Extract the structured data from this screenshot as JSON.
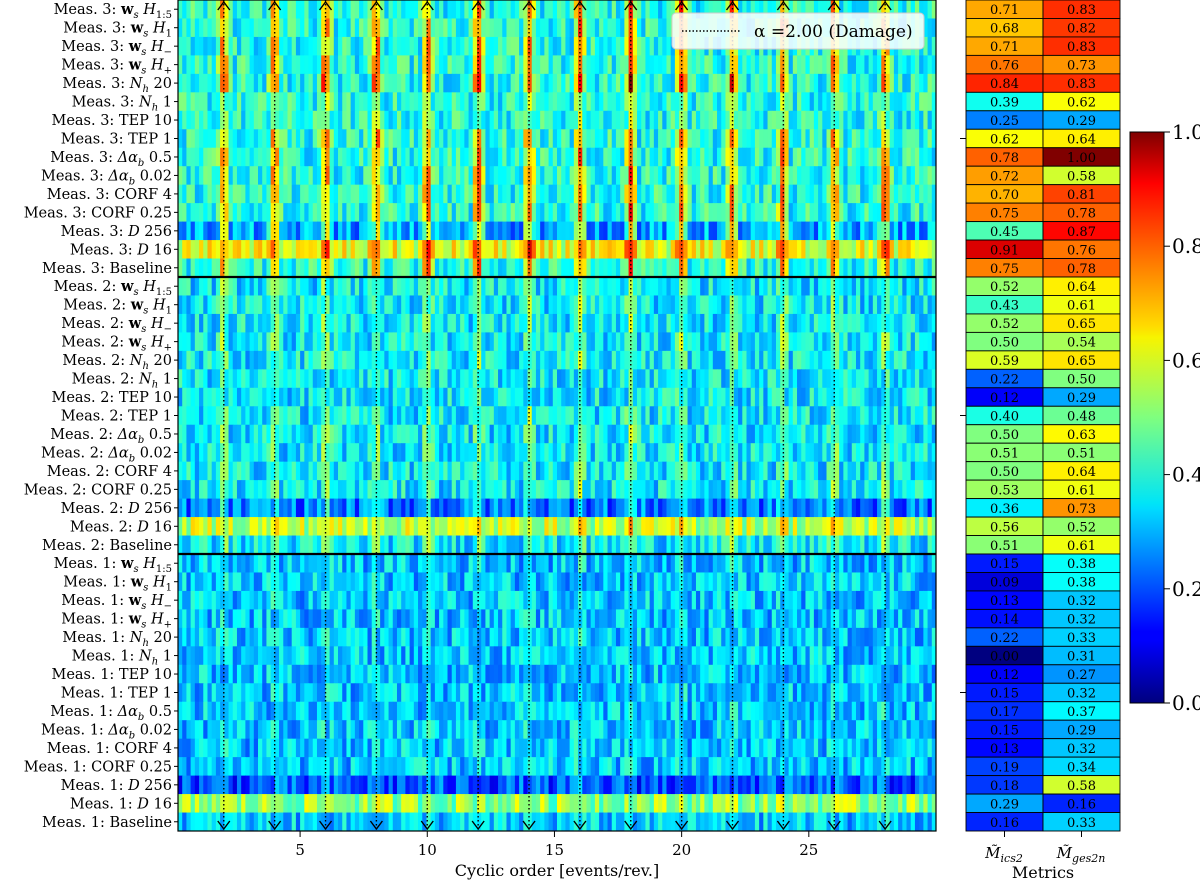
{
  "chart_data": {
    "type": "heatmap",
    "xlabel": "Cyclic order [events/rev.]",
    "x_range": [
      0.2,
      30
    ],
    "x_ticks": [
      5,
      10,
      15,
      20,
      25
    ],
    "fault_marker": {
      "legend_label": "α =2.00 (Damage)",
      "harmonics": [
        2,
        4,
        6,
        8,
        10,
        12,
        14,
        16,
        18,
        20,
        22,
        24,
        26,
        28
      ]
    },
    "rows": [
      "Meas. 3: w_s H_1:5",
      "Meas. 3: w_s H_1",
      "Meas. 3: w_s H_−",
      "Meas. 3: w_s H_+",
      "Meas. 3: N_h 20",
      "Meas. 3: N_h 1",
      "Meas. 3: TEP 10",
      "Meas. 3: TEP 1",
      "Meas. 3: Δα_b 0.5",
      "Meas. 3: Δα_b 0.02",
      "Meas. 3: CORF 4",
      "Meas. 3: CORF 0.25",
      "Meas. 3: D 256",
      "Meas. 3: D 16",
      "Meas. 3: Baseline",
      "Meas. 2: w_s H_1:5",
      "Meas. 2: w_s H_1",
      "Meas. 2: w_s H_−",
      "Meas. 2: w_s H_+",
      "Meas. 2: N_h 20",
      "Meas. 2: N_h 1",
      "Meas. 2: TEP 10",
      "Meas. 2: TEP 1",
      "Meas. 2: Δα_b 0.5",
      "Meas. 2: Δα_b 0.02",
      "Meas. 2: CORF 4",
      "Meas. 2: CORF 0.25",
      "Meas. 2: D 256",
      "Meas. 2: D 16",
      "Meas. 2: Baseline",
      "Meas. 1: w_s H_1:5",
      "Meas. 1: w_s H_1",
      "Meas. 1: w_s H_−",
      "Meas. 1: w_s H_+",
      "Meas. 1: N_h 20",
      "Meas. 1: N_h 1",
      "Meas. 1: TEP 10",
      "Meas. 1: TEP 1",
      "Meas. 1: Δα_b 0.5",
      "Meas. 1: Δα_b 0.02",
      "Meas. 1: CORF 4",
      "Meas. 1: CORF 0.25",
      "Meas. 1: D 256",
      "Meas. 1: D 16",
      "Meas. 1: Baseline"
    ],
    "metrics": {
      "xlabel": "Metrics",
      "columns": [
        "M̃ics2",
        "M̃ges2n"
      ],
      "values": [
        [
          0.71,
          0.83
        ],
        [
          0.68,
          0.82
        ],
        [
          0.71,
          0.83
        ],
        [
          0.76,
          0.73
        ],
        [
          0.84,
          0.83
        ],
        [
          0.39,
          0.62
        ],
        [
          0.25,
          0.29
        ],
        [
          0.62,
          0.64
        ],
        [
          0.78,
          1.0
        ],
        [
          0.72,
          0.58
        ],
        [
          0.7,
          0.81
        ],
        [
          0.75,
          0.78
        ],
        [
          0.45,
          0.87
        ],
        [
          0.91,
          0.76
        ],
        [
          0.75,
          0.78
        ],
        [
          0.52,
          0.64
        ],
        [
          0.43,
          0.61
        ],
        [
          0.52,
          0.65
        ],
        [
          0.5,
          0.54
        ],
        [
          0.59,
          0.65
        ],
        [
          0.22,
          0.5
        ],
        [
          0.12,
          0.29
        ],
        [
          0.4,
          0.48
        ],
        [
          0.5,
          0.63
        ],
        [
          0.51,
          0.51
        ],
        [
          0.5,
          0.64
        ],
        [
          0.53,
          0.61
        ],
        [
          0.36,
          0.73
        ],
        [
          0.56,
          0.52
        ],
        [
          0.51,
          0.61
        ],
        [
          0.15,
          0.38
        ],
        [
          0.09,
          0.38
        ],
        [
          0.13,
          0.32
        ],
        [
          0.14,
          0.32
        ],
        [
          0.22,
          0.33
        ],
        [
          0.0,
          0.31
        ],
        [
          0.12,
          0.27
        ],
        [
          0.15,
          0.32
        ],
        [
          0.17,
          0.37
        ],
        [
          0.15,
          0.29
        ],
        [
          0.13,
          0.32
        ],
        [
          0.19,
          0.34
        ],
        [
          0.18,
          0.58
        ],
        [
          0.29,
          0.16
        ],
        [
          0.16,
          0.33
        ]
      ]
    },
    "colorbar": {
      "range": [
        0.0,
        1.0
      ],
      "ticks": [
        "0.0",
        "0.2",
        "0.4",
        "0.6",
        "0.8",
        "1.0"
      ],
      "colormap": "jet"
    }
  }
}
